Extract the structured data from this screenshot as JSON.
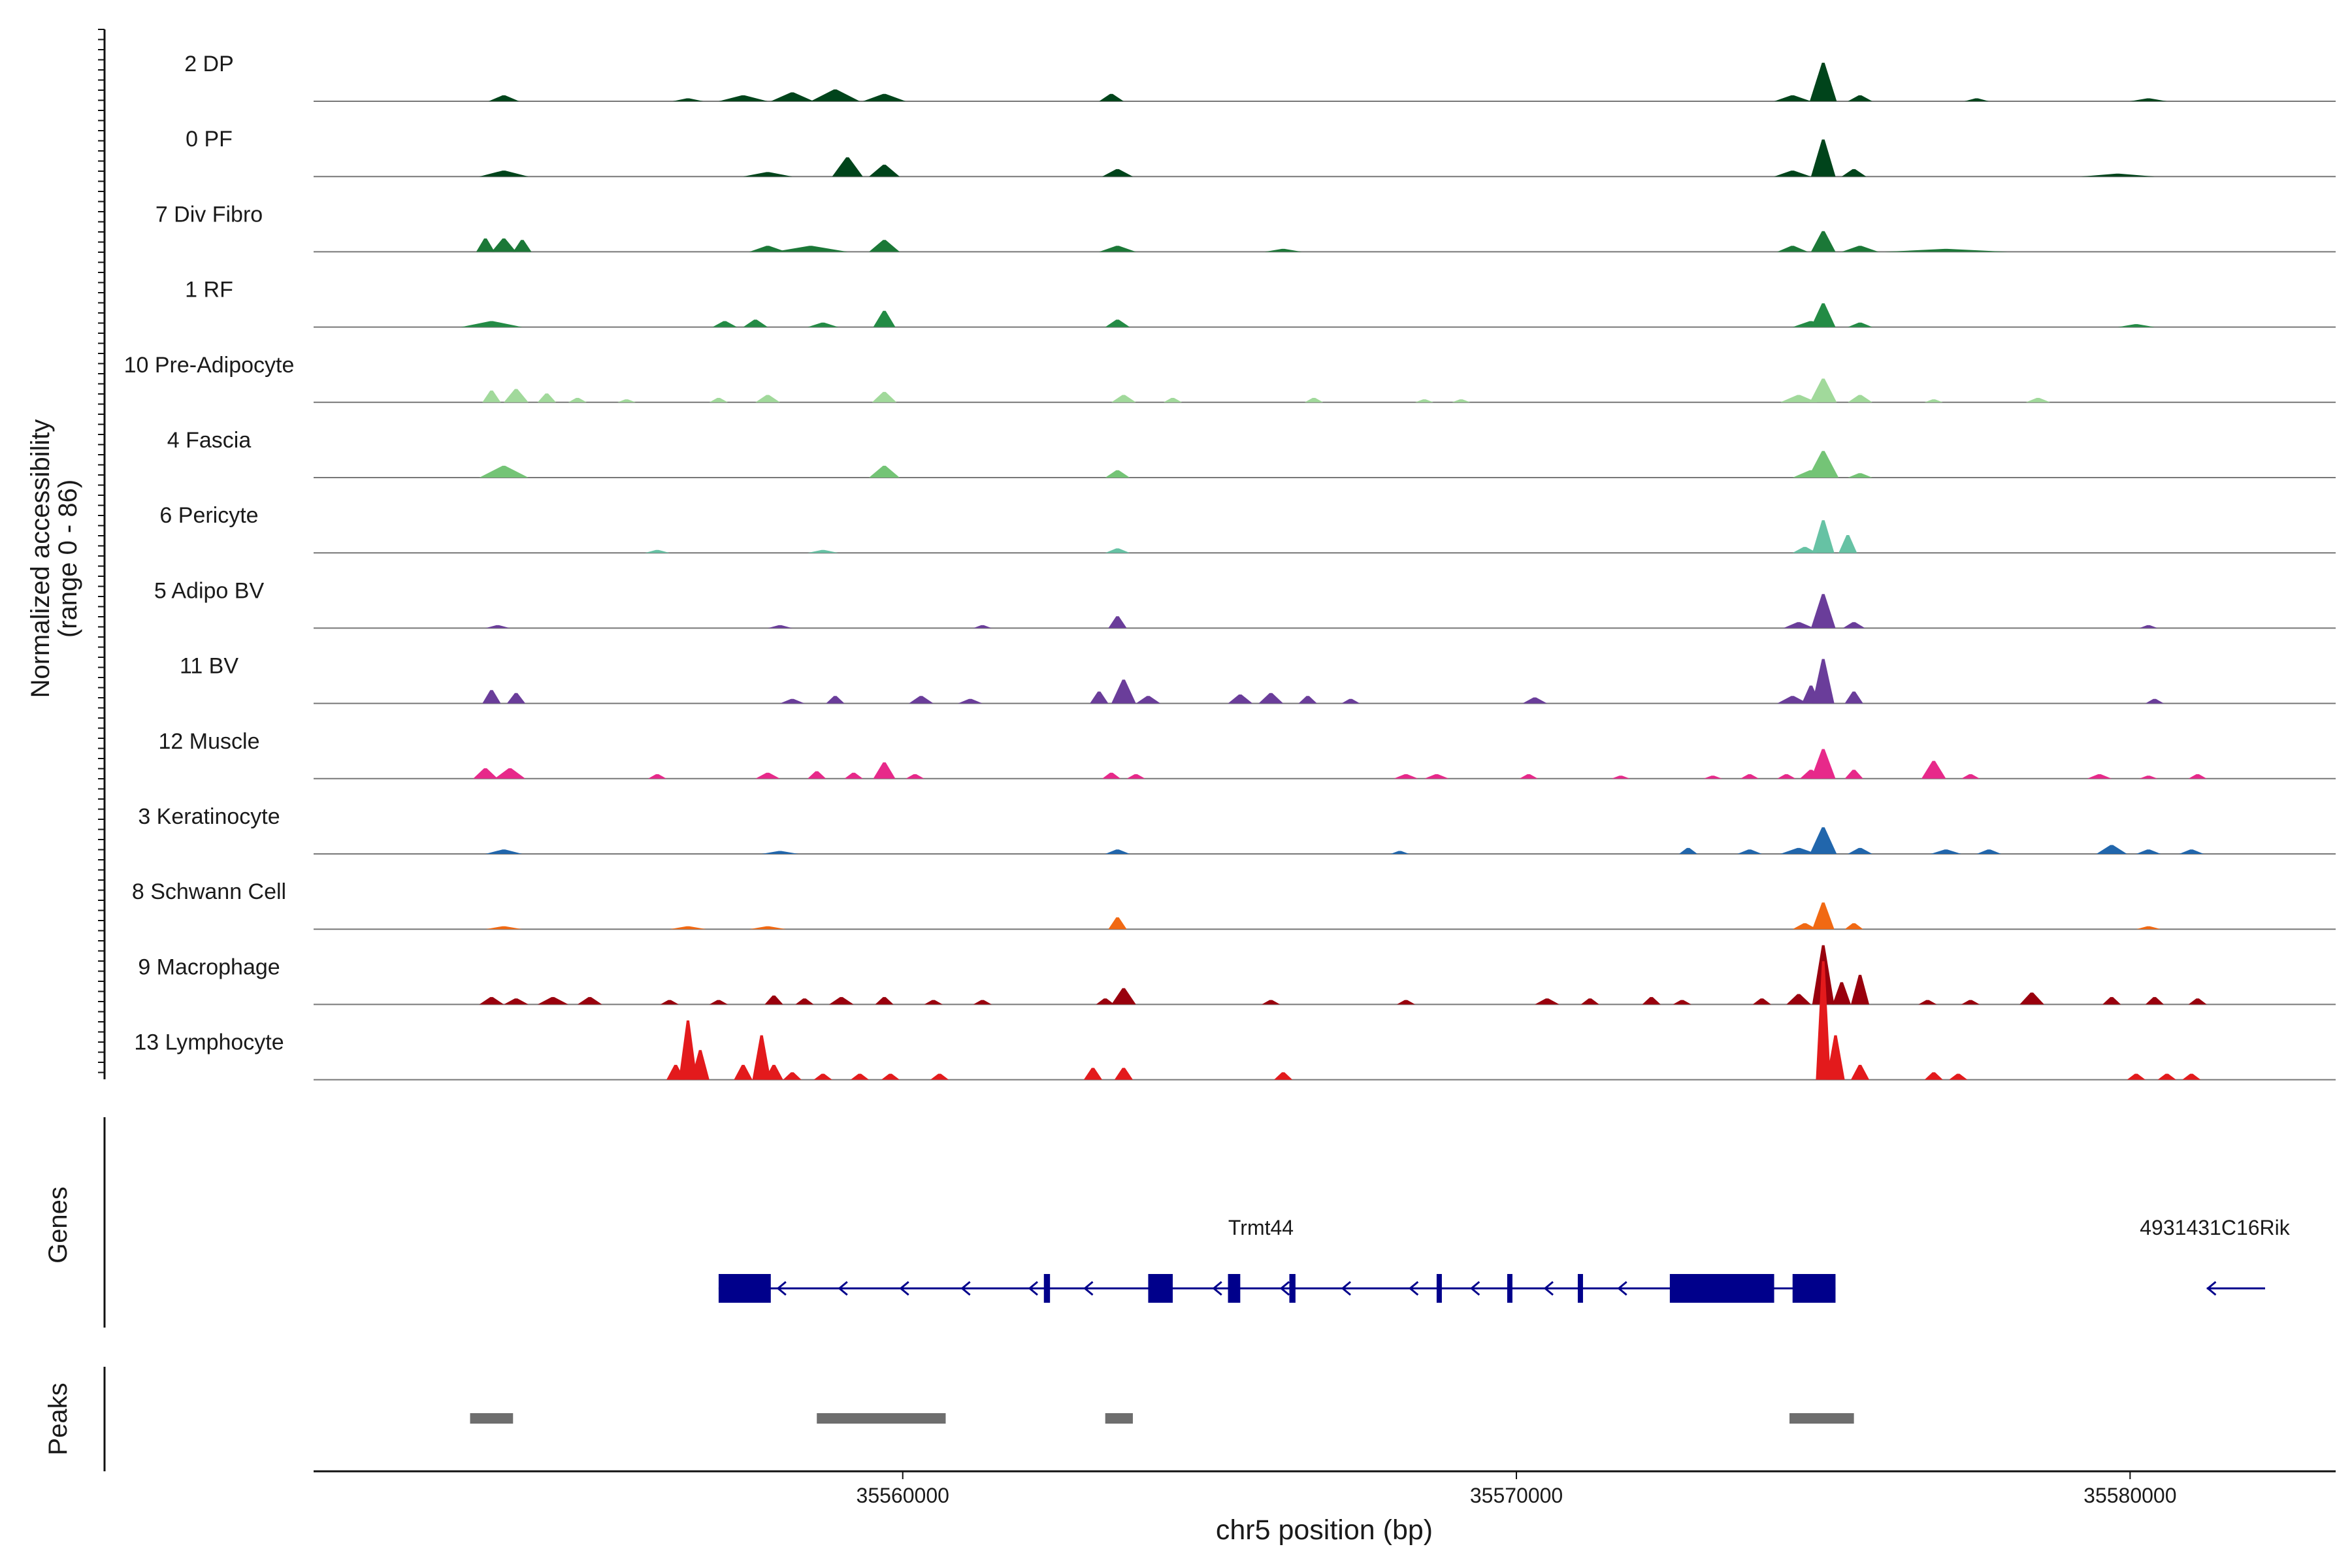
{
  "chart_data": {
    "type": "area",
    "chromosome": "chr5",
    "ylabel_line1": "Normalized accessibility",
    "ylabel_line2": "(range 0 - 86)",
    "y_range": [
      0,
      86
    ],
    "x_range": [
      35550400,
      35583350
    ],
    "x_ticks": [
      35560000,
      35570000,
      35580000
    ],
    "x_tick_labels": [
      "35560000",
      "35570000",
      "35580000"
    ],
    "xlabel": "chr5 position (bp)",
    "genes_label": "Genes",
    "peaks_label": "Peaks",
    "tracks": [
      {
        "name": "2 DP",
        "color": "#00441b",
        "peaks": [
          [
            35553500,
            250,
            4
          ],
          [
            35556500,
            250,
            2
          ],
          [
            35557400,
            400,
            4
          ],
          [
            35558200,
            350,
            6
          ],
          [
            35558900,
            400,
            8
          ],
          [
            35559700,
            350,
            5
          ],
          [
            35563400,
            200,
            5
          ],
          [
            35574500,
            300,
            4
          ],
          [
            35575000,
            220,
            26
          ],
          [
            35575600,
            200,
            4
          ],
          [
            35577500,
            200,
            2
          ],
          [
            35580300,
            300,
            2
          ]
        ]
      },
      {
        "name": "0 PF",
        "color": "#00441b",
        "peaks": [
          [
            35553500,
            400,
            4
          ],
          [
            35557800,
            400,
            3
          ],
          [
            35559100,
            250,
            13
          ],
          [
            35559700,
            250,
            8
          ],
          [
            35563500,
            250,
            5
          ],
          [
            35574500,
            300,
            4
          ],
          [
            35575000,
            200,
            25
          ],
          [
            35575500,
            200,
            5
          ],
          [
            35579800,
            600,
            2
          ]
        ]
      },
      {
        "name": "7 Div Fibro",
        "color": "#1b7837",
        "peaks": [
          [
            35553200,
            150,
            9
          ],
          [
            35553500,
            200,
            9
          ],
          [
            35553800,
            150,
            8
          ],
          [
            35557800,
            300,
            4
          ],
          [
            35558500,
            600,
            4
          ],
          [
            35559700,
            250,
            8
          ],
          [
            35563500,
            300,
            4
          ],
          [
            35566200,
            300,
            2
          ],
          [
            35574500,
            250,
            4
          ],
          [
            35575000,
            200,
            14
          ],
          [
            35575600,
            300,
            4
          ],
          [
            35577000,
            1000,
            2
          ]
        ]
      },
      {
        "name": "1 RF",
        "color": "#238b45",
        "peaks": [
          [
            35553300,
            500,
            4
          ],
          [
            35557100,
            200,
            4
          ],
          [
            35557600,
            200,
            5
          ],
          [
            35558700,
            250,
            3
          ],
          [
            35559700,
            180,
            11
          ],
          [
            35563500,
            200,
            5
          ],
          [
            35574800,
            300,
            4
          ],
          [
            35575000,
            200,
            16
          ],
          [
            35575600,
            200,
            3
          ],
          [
            35580100,
            300,
            2
          ]
        ]
      },
      {
        "name": "10 Pre-Adipocyte",
        "color": "#a1d99b",
        "peaks": [
          [
            35553300,
            150,
            8
          ],
          [
            35553700,
            200,
            9
          ],
          [
            35554200,
            150,
            6
          ],
          [
            35554700,
            150,
            3
          ],
          [
            35555500,
            150,
            2
          ],
          [
            35557000,
            150,
            3
          ],
          [
            35557800,
            200,
            5
          ],
          [
            35559700,
            200,
            7
          ],
          [
            35563600,
            200,
            5
          ],
          [
            35564400,
            150,
            3
          ],
          [
            35566700,
            150,
            3
          ],
          [
            35568500,
            150,
            2
          ],
          [
            35569100,
            150,
            2
          ],
          [
            35574600,
            300,
            5
          ],
          [
            35575000,
            220,
            16
          ],
          [
            35575600,
            200,
            5
          ],
          [
            35576800,
            150,
            2
          ],
          [
            35578500,
            200,
            3
          ]
        ]
      },
      {
        "name": "4 Fascia",
        "color": "#74c476",
        "peaks": [
          [
            35553500,
            400,
            8
          ],
          [
            35559700,
            250,
            8
          ],
          [
            35563500,
            200,
            5
          ],
          [
            35574800,
            300,
            5
          ],
          [
            35575000,
            250,
            18
          ],
          [
            35575600,
            200,
            3
          ]
        ]
      },
      {
        "name": "6 Pericyte",
        "color": "#66c2a4",
        "peaks": [
          [
            35556000,
            200,
            2
          ],
          [
            35558700,
            250,
            2
          ],
          [
            35563500,
            200,
            3
          ],
          [
            35574700,
            200,
            4
          ],
          [
            35575000,
            180,
            22
          ],
          [
            35575400,
            150,
            12
          ]
        ]
      },
      {
        "name": "5 Adipo BV",
        "color": "#6a3d9a",
        "peaks": [
          [
            35553400,
            200,
            2
          ],
          [
            35558000,
            200,
            2
          ],
          [
            35561300,
            150,
            2
          ],
          [
            35563500,
            150,
            8
          ],
          [
            35574600,
            250,
            4
          ],
          [
            35575000,
            200,
            23
          ],
          [
            35575500,
            180,
            4
          ],
          [
            35580300,
            150,
            2
          ]
        ]
      },
      {
        "name": "11 BV",
        "color": "#6a3d9a",
        "peaks": [
          [
            35553300,
            150,
            9
          ],
          [
            35553700,
            150,
            7
          ],
          [
            35558200,
            200,
            3
          ],
          [
            35558900,
            150,
            5
          ],
          [
            35560300,
            200,
            5
          ],
          [
            35561100,
            200,
            3
          ],
          [
            35563600,
            200,
            16
          ],
          [
            35563200,
            150,
            8
          ],
          [
            35564000,
            200,
            5
          ],
          [
            35565500,
            200,
            6
          ],
          [
            35566000,
            200,
            7
          ],
          [
            35566600,
            150,
            5
          ],
          [
            35567300,
            150,
            3
          ],
          [
            35570300,
            200,
            4
          ],
          [
            35574500,
            250,
            5
          ],
          [
            35574800,
            150,
            12
          ],
          [
            35575000,
            180,
            30
          ],
          [
            35575500,
            150,
            8
          ],
          [
            35580400,
            150,
            3
          ]
        ]
      },
      {
        "name": "12 Muscle",
        "color": "#e7298a",
        "peaks": [
          [
            35553200,
            200,
            7
          ],
          [
            35553600,
            250,
            7
          ],
          [
            35556000,
            150,
            3
          ],
          [
            35557800,
            200,
            4
          ],
          [
            35558600,
            150,
            5
          ],
          [
            35559200,
            150,
            4
          ],
          [
            35559700,
            180,
            11
          ],
          [
            35560200,
            150,
            3
          ],
          [
            35563400,
            150,
            4
          ],
          [
            35563800,
            150,
            3
          ],
          [
            35568200,
            200,
            3
          ],
          [
            35568700,
            200,
            3
          ],
          [
            35570200,
            150,
            3
          ],
          [
            35571700,
            150,
            2
          ],
          [
            35573200,
            150,
            2
          ],
          [
            35573800,
            150,
            3
          ],
          [
            35574400,
            150,
            3
          ],
          [
            35574800,
            180,
            6
          ],
          [
            35575000,
            200,
            20
          ],
          [
            35575500,
            150,
            6
          ],
          [
            35576800,
            200,
            12
          ],
          [
            35577400,
            150,
            3
          ],
          [
            35579500,
            200,
            3
          ],
          [
            35580300,
            150,
            2
          ],
          [
            35581100,
            150,
            3
          ]
        ]
      },
      {
        "name": "3 Keratinocyte",
        "color": "#2166ac",
        "peaks": [
          [
            35553500,
            300,
            3
          ],
          [
            35558000,
            300,
            2
          ],
          [
            35563500,
            200,
            3
          ],
          [
            35568100,
            150,
            2
          ],
          [
            35572800,
            150,
            4
          ],
          [
            35573800,
            200,
            3
          ],
          [
            35574600,
            300,
            4
          ],
          [
            35575000,
            220,
            18
          ],
          [
            35575600,
            200,
            4
          ],
          [
            35577000,
            250,
            3
          ],
          [
            35577700,
            200,
            3
          ],
          [
            35579700,
            250,
            6
          ],
          [
            35580300,
            200,
            3
          ],
          [
            35581000,
            200,
            3
          ]
        ]
      },
      {
        "name": "8 Schwann Cell",
        "color": "#f16913",
        "peaks": [
          [
            35553500,
            300,
            2
          ],
          [
            35556500,
            300,
            2
          ],
          [
            35557800,
            300,
            2
          ],
          [
            35563500,
            150,
            8
          ],
          [
            35574700,
            200,
            4
          ],
          [
            35575000,
            180,
            18
          ],
          [
            35575500,
            150,
            4
          ],
          [
            35580300,
            200,
            2
          ]
        ]
      },
      {
        "name": "9 Macrophage",
        "color": "#99000d",
        "peaks": [
          [
            35553300,
            200,
            5
          ],
          [
            35553700,
            200,
            4
          ],
          [
            35554300,
            250,
            5
          ],
          [
            35554900,
            200,
            5
          ],
          [
            35556200,
            150,
            3
          ],
          [
            35557000,
            150,
            3
          ],
          [
            35557900,
            150,
            6
          ],
          [
            35558400,
            150,
            4
          ],
          [
            35559000,
            200,
            5
          ],
          [
            35559700,
            150,
            5
          ],
          [
            35560500,
            150,
            3
          ],
          [
            35561300,
            150,
            3
          ],
          [
            35563600,
            200,
            11
          ],
          [
            35563300,
            150,
            4
          ],
          [
            35566000,
            150,
            3
          ],
          [
            35568200,
            150,
            3
          ],
          [
            35570500,
            200,
            4
          ],
          [
            35571200,
            150,
            4
          ],
          [
            35572200,
            150,
            5
          ],
          [
            35572700,
            150,
            3
          ],
          [
            35574000,
            150,
            4
          ],
          [
            35574600,
            200,
            7
          ],
          [
            35575000,
            180,
            40
          ],
          [
            35575300,
            150,
            15
          ],
          [
            35575600,
            150,
            20
          ],
          [
            35576700,
            150,
            3
          ],
          [
            35577400,
            150,
            3
          ],
          [
            35578400,
            200,
            8
          ],
          [
            35579700,
            150,
            5
          ],
          [
            35580400,
            150,
            5
          ],
          [
            35581100,
            150,
            4
          ]
        ]
      },
      {
        "name": "13 Lymphocyte",
        "color": "#e31a1c",
        "peaks": [
          [
            35556300,
            150,
            10
          ],
          [
            35556500,
            150,
            40
          ],
          [
            35556700,
            150,
            20
          ],
          [
            35557400,
            150,
            10
          ],
          [
            35557700,
            150,
            30
          ],
          [
            35557900,
            150,
            10
          ],
          [
            35558200,
            150,
            5
          ],
          [
            35558700,
            150,
            4
          ],
          [
            35559300,
            150,
            4
          ],
          [
            35559800,
            150,
            4
          ],
          [
            35560600,
            150,
            4
          ],
          [
            35563100,
            150,
            8
          ],
          [
            35563600,
            150,
            8
          ],
          [
            35566200,
            150,
            5
          ],
          [
            35575000,
            120,
            80
          ],
          [
            35575200,
            150,
            30
          ],
          [
            35575600,
            150,
            10
          ],
          [
            35576800,
            150,
            5
          ],
          [
            35577200,
            150,
            4
          ],
          [
            35580100,
            150,
            4
          ],
          [
            35580600,
            150,
            4
          ],
          [
            35581000,
            150,
            4
          ]
        ]
      }
    ],
    "genes": [
      {
        "name": "Trmt44",
        "start": 35557000,
        "end": 35575200,
        "exons": [
          [
            35557000,
            35557850
          ],
          [
            35562300,
            35562400
          ],
          [
            35564000,
            35564400
          ],
          [
            35565300,
            35565500
          ],
          [
            35566300,
            35566400
          ],
          [
            35568700,
            35568760
          ],
          [
            35569850,
            35569920
          ],
          [
            35571000,
            35571080
          ],
          [
            35572500,
            35574200
          ],
          [
            35574500,
            35575200
          ]
        ],
        "arrows": [
          35558000,
          35559000,
          35560000,
          35561000,
          35562100,
          35563000,
          35565100,
          35566200,
          35567200,
          35568300,
          35569300,
          35570500,
          35571700
        ]
      },
      {
        "name": "4931431C16Rik",
        "start": 35581250,
        "end": 35582200,
        "exons": [],
        "arrows": [
          35581300
        ]
      }
    ],
    "peaks": [
      [
        35552950,
        35553650
      ],
      [
        35558600,
        35560700
      ],
      [
        35563300,
        35563750
      ],
      [
        35574450,
        35575500
      ]
    ]
  }
}
